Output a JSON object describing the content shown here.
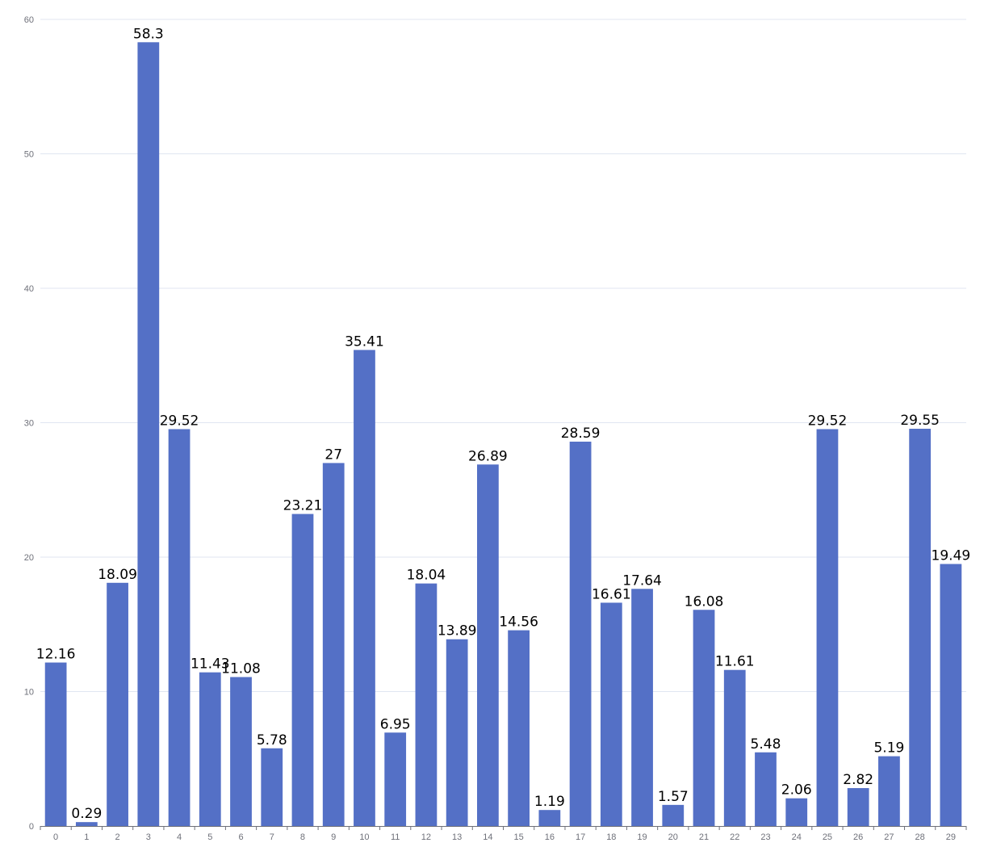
{
  "chart_data": {
    "type": "bar",
    "categories": [
      "0",
      "1",
      "2",
      "3",
      "4",
      "5",
      "6",
      "7",
      "8",
      "9",
      "10",
      "11",
      "12",
      "13",
      "14",
      "15",
      "16",
      "17",
      "18",
      "19",
      "20",
      "21",
      "22",
      "23",
      "24",
      "25",
      "26",
      "27",
      "28",
      "29"
    ],
    "values": [
      12.16,
      0.29,
      18.09,
      58.3,
      29.52,
      11.43,
      11.08,
      5.78,
      23.21,
      27,
      35.41,
      6.95,
      18.04,
      13.89,
      26.89,
      14.56,
      1.19,
      28.59,
      16.61,
      17.64,
      1.57,
      16.08,
      11.61,
      5.48,
      2.06,
      29.52,
      2.82,
      5.19,
      29.55,
      19.49
    ],
    "y_ticks": [
      "0",
      "10",
      "20",
      "30",
      "40",
      "50",
      "60"
    ],
    "ylim": [
      0,
      60
    ],
    "grid": true,
    "title": "",
    "xlabel": "",
    "ylabel": "",
    "bar_color": "#5470c6",
    "show_data_labels": true
  }
}
